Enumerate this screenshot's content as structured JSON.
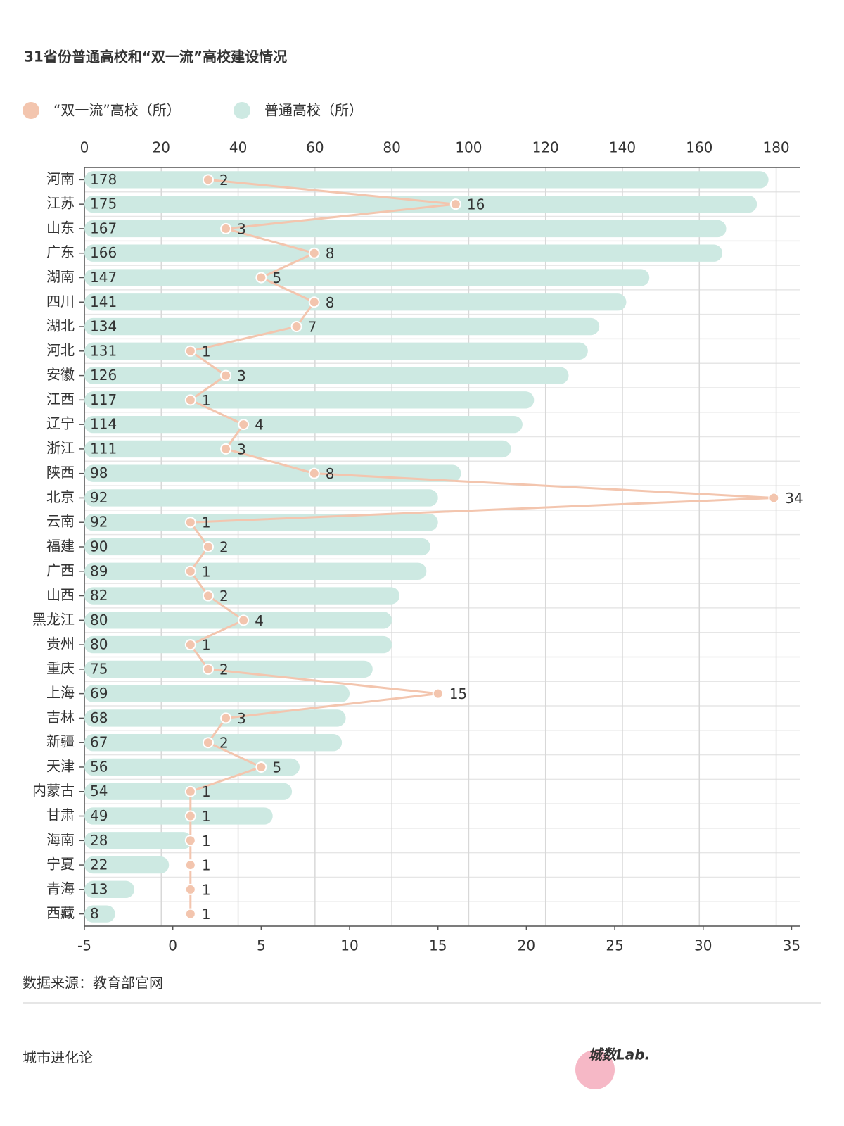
{
  "chart_data": {
    "type": "bar-line",
    "title": "31省份普通高校和“双一流”高校建设情况",
    "categories": [
      "河南",
      "江苏",
      "山东",
      "广东",
      "湖南",
      "四川",
      "湖北",
      "河北",
      "安徽",
      "江西",
      "辽宁",
      "浙江",
      "陕西",
      "北京",
      "云南",
      "福建",
      "广西",
      "山西",
      "黑龙江",
      "贵州",
      "重庆",
      "上海",
      "吉林",
      "新疆",
      "天津",
      "内蒙古",
      "甘肃",
      "海南",
      "宁夏",
      "青海",
      "西藏"
    ],
    "series": [
      {
        "name": "“双一流”高校（所）",
        "color": "#f3c5ae",
        "type": "line",
        "axis": "x2",
        "values": [
          2,
          16,
          3,
          8,
          5,
          8,
          7,
          1,
          3,
          1,
          4,
          3,
          8,
          34,
          1,
          2,
          1,
          2,
          4,
          1,
          2,
          15,
          3,
          2,
          5,
          1,
          1,
          1,
          1,
          1,
          1
        ]
      },
      {
        "name": "普通高校（所）",
        "color": "#cde9e2",
        "type": "bar",
        "axis": "x",
        "values": [
          178,
          175,
          167,
          166,
          147,
          141,
          134,
          131,
          126,
          117,
          114,
          111,
          98,
          92,
          92,
          90,
          89,
          82,
          80,
          80,
          75,
          69,
          68,
          67,
          56,
          54,
          49,
          28,
          22,
          13,
          8
        ]
      }
    ],
    "xlim": [
      0,
      186.3
    ],
    "xticks": [
      0,
      20,
      40,
      60,
      80,
      100,
      120,
      140,
      160,
      180
    ],
    "x2lim": [
      -5,
      35.5
    ],
    "x2ticks": [
      -5,
      0,
      5,
      10,
      15,
      20,
      25,
      30,
      35
    ],
    "grid": true,
    "source": "数据来源：教育部官网",
    "footer": "城市进化论",
    "logo": "城数Lab."
  }
}
